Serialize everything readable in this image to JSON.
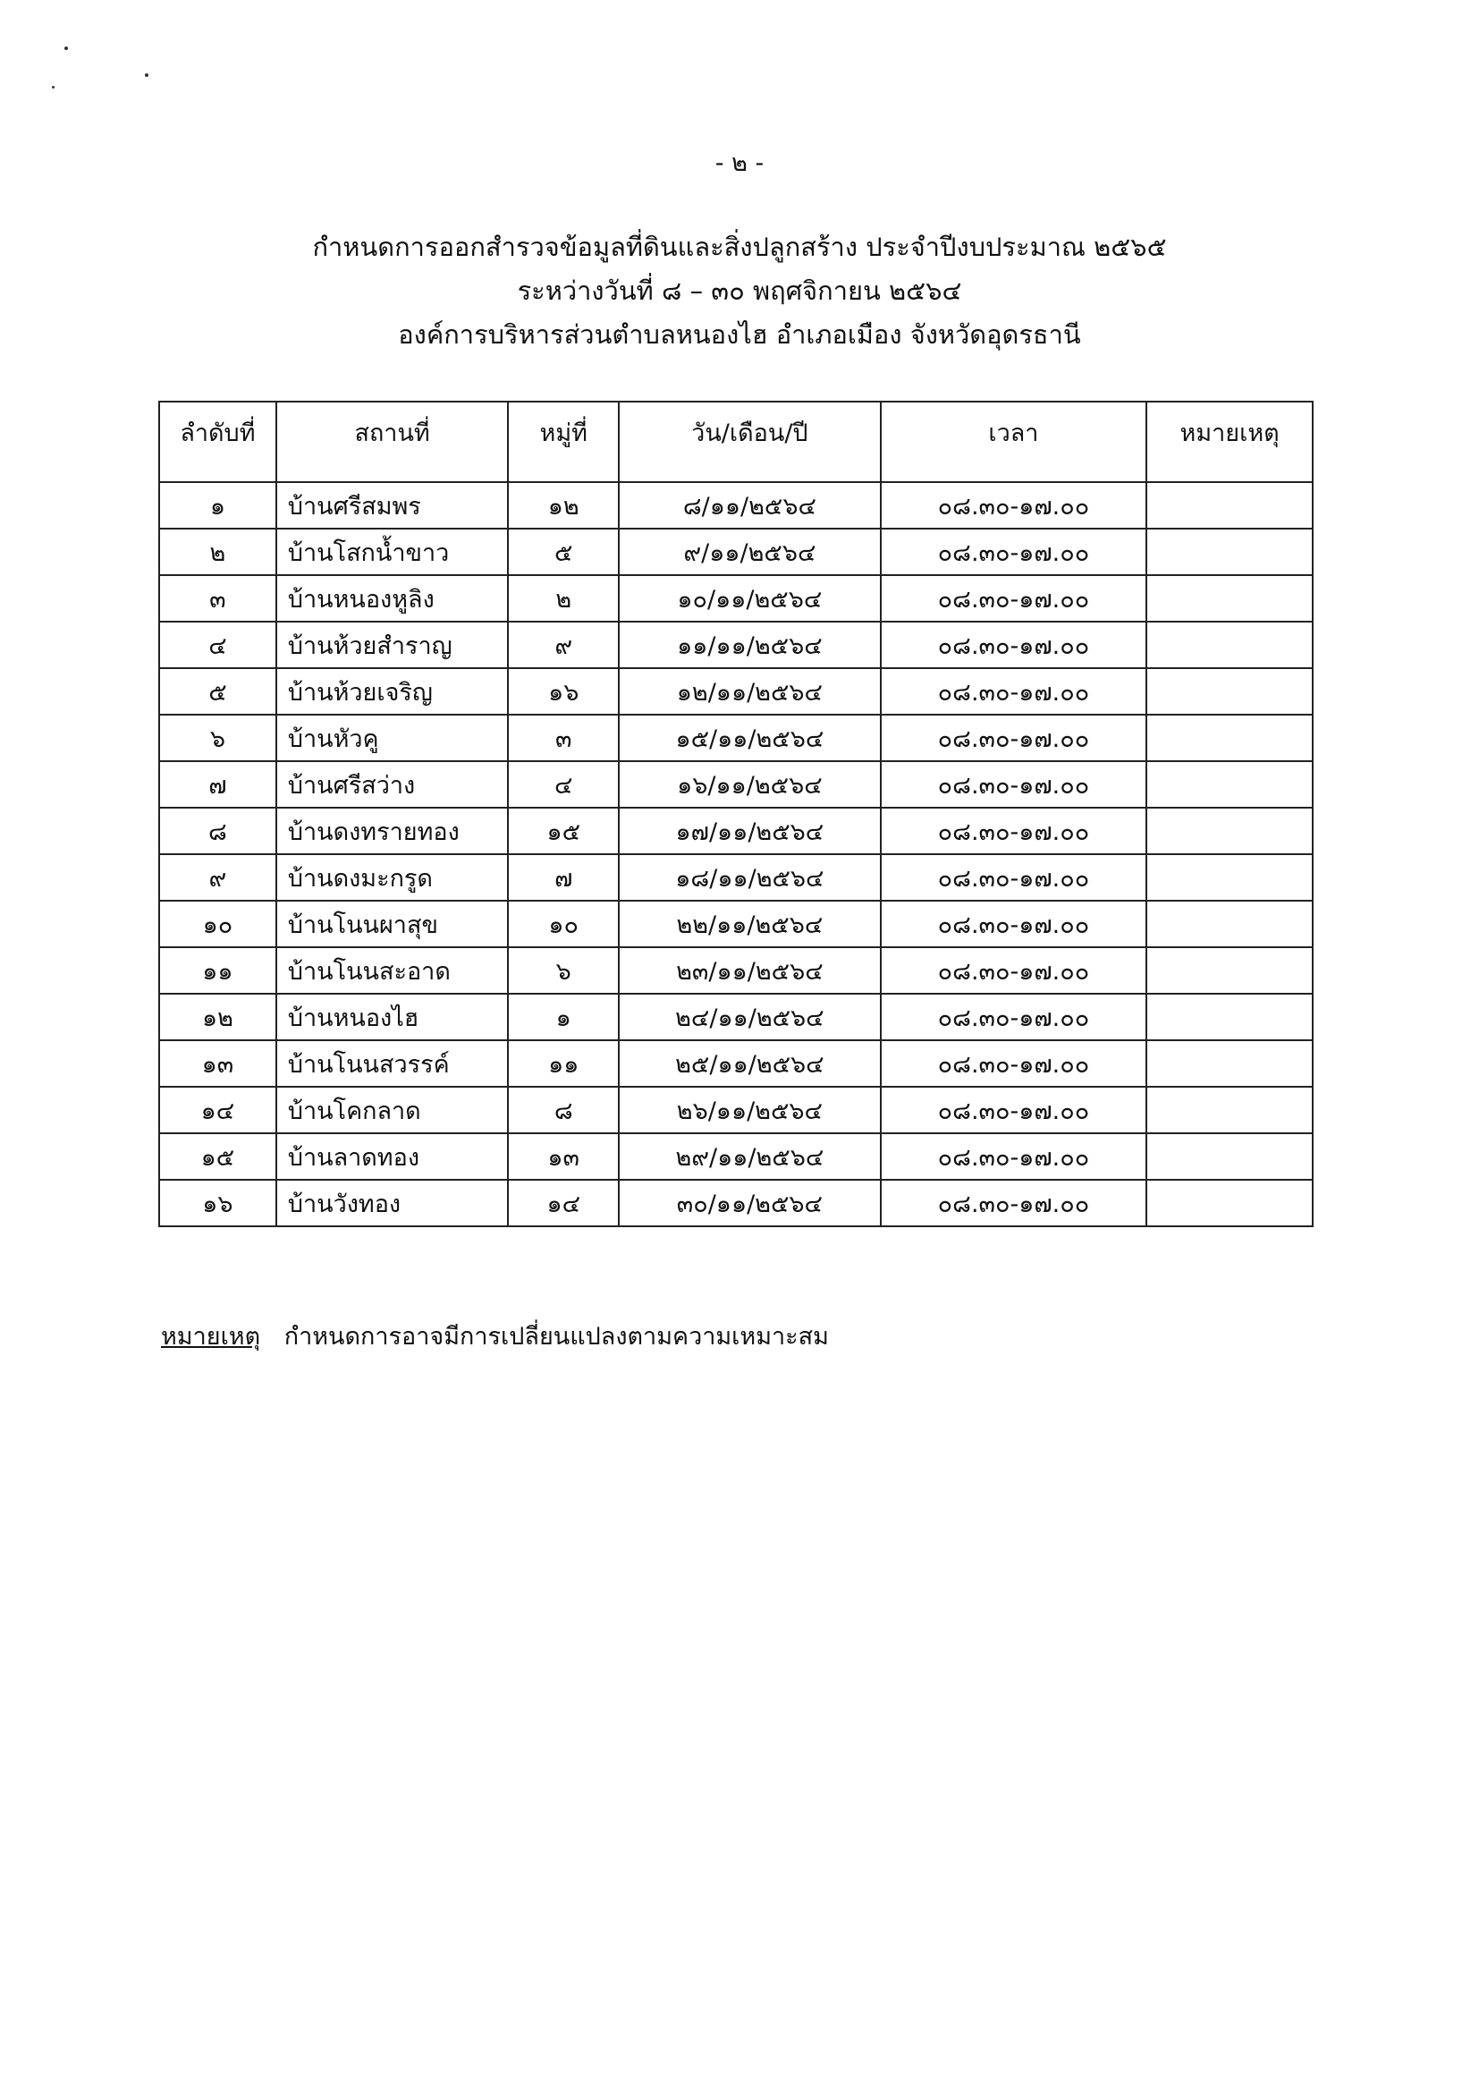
{
  "page_number": "- ๒ -",
  "titles": [
    "กำหนดการออกสำรวจข้อมูลที่ดินและสิ่งปลูกสร้าง ประจำปีงบประมาณ ๒๕๖๕",
    "ระหว่างวันที่ ๘ – ๓๐ พฤศจิกายน ๒๕๖๔",
    "องค์การบริหารส่วนตำบลหนองไฮ อำเภอเมือง จังหวัดอุดรธานี"
  ],
  "table": {
    "headers": [
      "ลำดับที่",
      "สถานที่",
      "หมู่ที่",
      "วัน/เดือน/ปี",
      "เวลา",
      "หมายเหตุ"
    ],
    "rows": [
      [
        "๑",
        "บ้านศรีสมพร",
        "๑๒",
        "๘/๑๑/๒๕๖๔",
        "๐๘.๓๐-๑๗.๐๐",
        ""
      ],
      [
        "๒",
        "บ้านโสกน้ำขาว",
        "๕",
        "๙/๑๑/๒๕๖๔",
        "๐๘.๓๐-๑๗.๐๐",
        ""
      ],
      [
        "๓",
        "บ้านหนองหูลิง",
        "๒",
        "๑๐/๑๑/๒๕๖๔",
        "๐๘.๓๐-๑๗.๐๐",
        ""
      ],
      [
        "๔",
        "บ้านห้วยสำราญ",
        "๙",
        "๑๑/๑๑/๒๕๖๔",
        "๐๘.๓๐-๑๗.๐๐",
        ""
      ],
      [
        "๕",
        "บ้านห้วยเจริญ",
        "๑๖",
        "๑๒/๑๑/๒๕๖๔",
        "๐๘.๓๐-๑๗.๐๐",
        ""
      ],
      [
        "๖",
        "บ้านหัวคู",
        "๓",
        "๑๕/๑๑/๒๕๖๔",
        "๐๘.๓๐-๑๗.๐๐",
        ""
      ],
      [
        "๗",
        "บ้านศรีสว่าง",
        "๔",
        "๑๖/๑๑/๒๕๖๔",
        "๐๘.๓๐-๑๗.๐๐",
        ""
      ],
      [
        "๘",
        "บ้านดงทรายทอง",
        "๑๕",
        "๑๗/๑๑/๒๕๖๔",
        "๐๘.๓๐-๑๗.๐๐",
        ""
      ],
      [
        "๙",
        "บ้านดงมะกรูด",
        "๗",
        "๑๘/๑๑/๒๕๖๔",
        "๐๘.๓๐-๑๗.๐๐",
        ""
      ],
      [
        "๑๐",
        "บ้านโนนผาสุข",
        "๑๐",
        "๒๒/๑๑/๒๕๖๔",
        "๐๘.๓๐-๑๗.๐๐",
        ""
      ],
      [
        "๑๑",
        "บ้านโนนสะอาด",
        "๖",
        "๒๓/๑๑/๒๕๖๔",
        "๐๘.๓๐-๑๗.๐๐",
        ""
      ],
      [
        "๑๒",
        "บ้านหนองไฮ",
        "๑",
        "๒๔/๑๑/๒๕๖๔",
        "๐๘.๓๐-๑๗.๐๐",
        ""
      ],
      [
        "๑๓",
        "บ้านโนนสวรรค์",
        "๑๑",
        "๒๕/๑๑/๒๕๖๔",
        "๐๘.๓๐-๑๗.๐๐",
        ""
      ],
      [
        "๑๔",
        "บ้านโคกลาด",
        "๘",
        "๒๖/๑๑/๒๕๖๔",
        "๐๘.๓๐-๑๗.๐๐",
        ""
      ],
      [
        "๑๕",
        "บ้านลาดทอง",
        "๑๓",
        "๒๙/๑๑/๒๕๖๔",
        "๐๘.๓๐-๑๗.๐๐",
        ""
      ],
      [
        "๑๖",
        "บ้านวังทอง",
        "๑๔",
        "๓๐/๑๑/๒๕๖๔",
        "๐๘.๓๐-๑๗.๐๐",
        ""
      ]
    ]
  },
  "note": {
    "label": "หมายเหตุ",
    "text": "กำหนดการอาจมีการเปลี่ยนแปลงตามความเหมาะสม"
  }
}
